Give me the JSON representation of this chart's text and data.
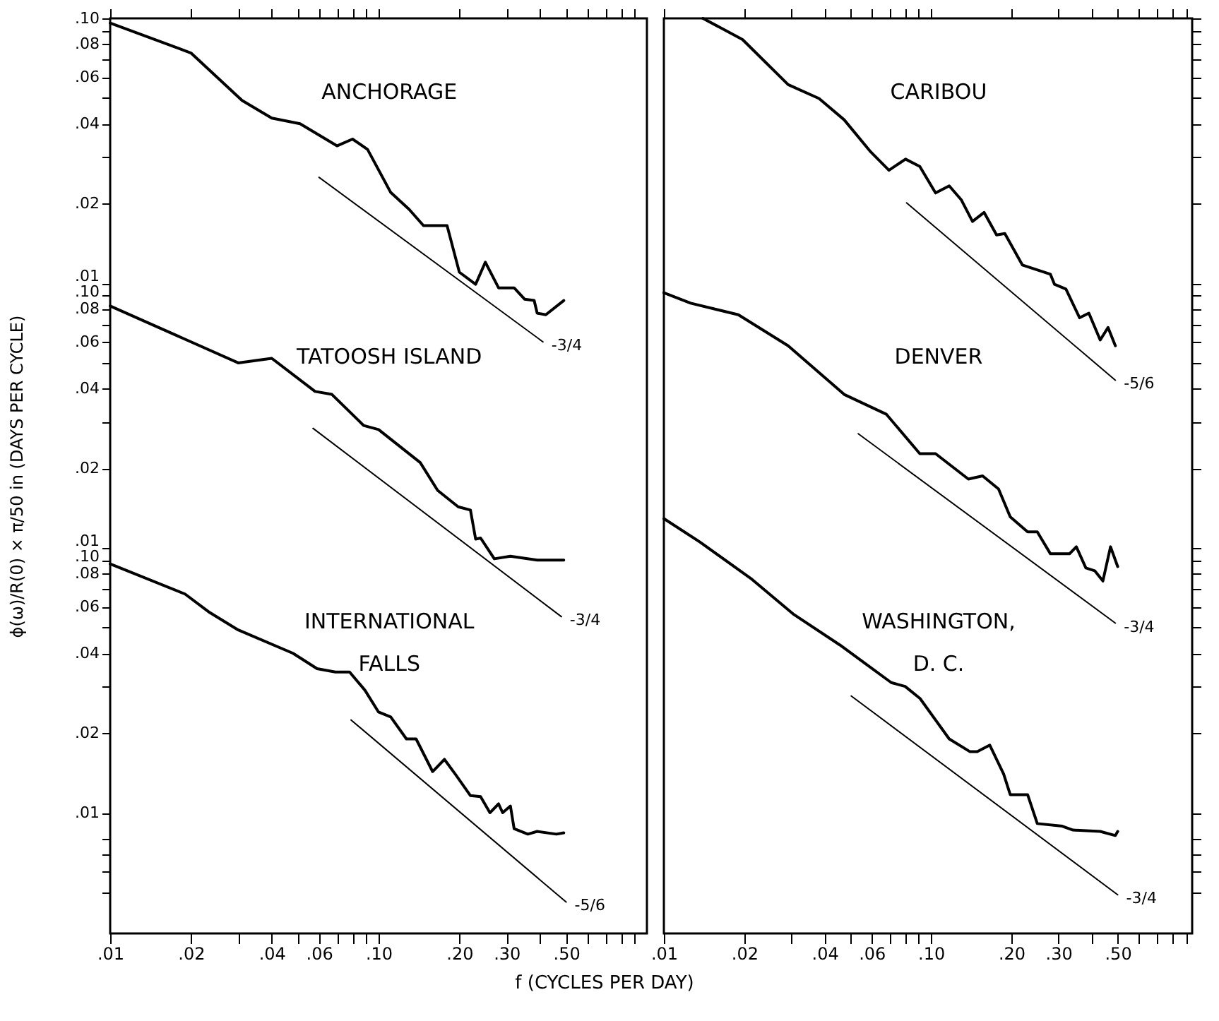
{
  "chart_data": [
    {
      "type": "line",
      "title": "ANCHORAGE",
      "log": "xy",
      "tick_labels": "y",
      "xlim": [
        0.01,
        1
      ],
      "ylim": [
        3.5e-05,
        0.1
      ],
      "xticks": [
        {
          "value": 0.01,
          "label": null
        },
        {
          "value": 0.02,
          "label": null
        },
        {
          "value": 0.03,
          "label": null
        },
        {
          "value": 0.04,
          "label": null
        },
        {
          "value": 0.05,
          "label": null
        },
        {
          "value": 0.06,
          "label": null
        },
        {
          "value": 0.07,
          "label": null
        },
        {
          "value": 0.08,
          "label": null
        },
        {
          "value": 0.09,
          "label": null
        },
        {
          "value": 0.1,
          "label": null
        },
        {
          "value": 0.2,
          "label": null
        },
        {
          "value": 0.3,
          "label": null
        },
        {
          "value": 0.4,
          "label": null
        },
        {
          "value": 0.5,
          "label": null
        },
        {
          "value": 0.6,
          "label": null
        },
        {
          "value": 0.7,
          "label": null
        },
        {
          "value": 0.8,
          "label": null
        },
        {
          "value": 0.9,
          "label": null
        }
      ],
      "yticks": [
        {
          "value": 0.1,
          "label": ".10"
        },
        {
          "value": 0.09,
          "label": null
        },
        {
          "value": 0.08,
          "label": ".08"
        },
        {
          "value": 0.07,
          "label": null
        },
        {
          "value": 0.06,
          "label": ".06"
        },
        {
          "value": 0.05,
          "label": null
        },
        {
          "value": 0.04,
          "label": ".04"
        },
        {
          "value": 0.03,
          "label": null
        },
        {
          "value": 0.02,
          "label": ".02"
        },
        {
          "value": 0.01,
          "label": ".01"
        }
      ],
      "series": [
        {
          "color": "#000000",
          "x": [
            0.01,
            0.02,
            0.031,
            0.04,
            0.051,
            0.07,
            0.08,
            0.091,
            0.111,
            0.13,
            0.147,
            0.18,
            0.2,
            0.23,
            0.25,
            0.28,
            0.32,
            0.35,
            0.38,
            0.39,
            0.42,
            0.49
          ],
          "values": [
            0.096,
            0.074,
            0.049,
            0.042,
            0.04,
            0.033,
            0.035,
            0.032,
            0.022,
            0.019,
            0.0165,
            0.0165,
            0.011,
            0.0099,
            0.012,
            0.0096,
            0.0096,
            0.0087,
            0.0086,
            0.0077,
            0.0076,
            0.0086
          ]
        },
        {
          "name": "-3/4",
          "color": "#000000",
          "x": [
            0.06,
            0.41
          ],
          "values": [
            0.0251,
            0.006
          ]
        }
      ]
    },
    {
      "type": "line",
      "title": "CARIBOU",
      "log": "xy",
      "tick_labels": false,
      "xlim": [
        0.01,
        0.95
      ],
      "ylim": [
        3.5e-05,
        0.1
      ],
      "xticks": [
        {
          "value": 0.01,
          "label": null
        },
        {
          "value": 0.02,
          "label": null
        },
        {
          "value": 0.03,
          "label": null
        },
        {
          "value": 0.04,
          "label": null
        },
        {
          "value": 0.05,
          "label": null
        },
        {
          "value": 0.06,
          "label": null
        },
        {
          "value": 0.07,
          "label": null
        },
        {
          "value": 0.08,
          "label": null
        },
        {
          "value": 0.09,
          "label": null
        },
        {
          "value": 0.1,
          "label": null
        },
        {
          "value": 0.2,
          "label": null
        },
        {
          "value": 0.3,
          "label": null
        },
        {
          "value": 0.4,
          "label": null
        },
        {
          "value": 0.5,
          "label": null
        },
        {
          "value": 0.6,
          "label": null
        },
        {
          "value": 0.7,
          "label": null
        },
        {
          "value": 0.8,
          "label": null
        },
        {
          "value": 0.9,
          "label": null
        }
      ],
      "yticks": [
        {
          "value": 0.1,
          "label": null
        },
        {
          "value": 0.09,
          "label": null
        },
        {
          "value": 0.08,
          "label": null
        },
        {
          "value": 0.07,
          "label": null
        },
        {
          "value": 0.06,
          "label": null
        },
        {
          "value": 0.05,
          "label": null
        },
        {
          "value": 0.04,
          "label": null
        },
        {
          "value": 0.03,
          "label": null
        },
        {
          "value": 0.02,
          "label": null
        },
        {
          "value": 0.01,
          "label": null
        }
      ],
      "series": [
        {
          "color": "#000000",
          "x": [
            0.014,
            0.0197,
            0.0292,
            0.0381,
            0.0473,
            0.0595,
            0.0696,
            0.0803,
            0.0908,
            0.104,
            0.117,
            0.13,
            0.143,
            0.158,
            0.176,
            0.189,
            0.22,
            0.28,
            0.29,
            0.32,
            0.36,
            0.39,
            0.43,
            0.46,
            0.49
          ],
          "values": [
            0.1,
            0.0832,
            0.0562,
            0.0498,
            0.0414,
            0.0313,
            0.0267,
            0.0294,
            0.0276,
            0.0219,
            0.0233,
            0.0206,
            0.0171,
            0.0185,
            0.0152,
            0.0154,
            0.0117,
            0.0108,
            0.0099,
            0.0095,
            0.0074,
            0.0077,
            0.0061,
            0.0068,
            0.0058
          ]
        },
        {
          "name": "-5/6",
          "color": "#000000",
          "x": [
            0.081,
            0.49
          ],
          "values": [
            0.0201,
            0.0043
          ]
        }
      ]
    },
    {
      "type": "line",
      "title": "TATOOSH ISLAND",
      "ylabel": "ϕ(ω)/R(0) × π/50 in  (DAYS PER CYCLE)",
      "log": "xy",
      "tick_labels": "y",
      "xlim": [
        0.01,
        1
      ],
      "ylim": [
        0.00035,
        1
      ],
      "xticks": [
        {
          "value": 0.01,
          "label": null
        },
        {
          "value": 0.02,
          "label": null
        },
        {
          "value": 0.03,
          "label": null
        },
        {
          "value": 0.04,
          "label": null
        },
        {
          "value": 0.05,
          "label": null
        },
        {
          "value": 0.06,
          "label": null
        },
        {
          "value": 0.07,
          "label": null
        },
        {
          "value": 0.08,
          "label": null
        },
        {
          "value": 0.09,
          "label": null
        },
        {
          "value": 0.1,
          "label": null
        },
        {
          "value": 0.2,
          "label": null
        },
        {
          "value": 0.3,
          "label": null
        },
        {
          "value": 0.4,
          "label": null
        },
        {
          "value": 0.5,
          "label": null
        },
        {
          "value": 0.6,
          "label": null
        },
        {
          "value": 0.7,
          "label": null
        },
        {
          "value": 0.8,
          "label": null
        },
        {
          "value": 0.9,
          "label": null
        }
      ],
      "yticks": [
        {
          "value": 0.1,
          "label": ".10"
        },
        {
          "value": 0.09,
          "label": null
        },
        {
          "value": 0.08,
          "label": ".08"
        },
        {
          "value": 0.07,
          "label": null
        },
        {
          "value": 0.06,
          "label": ".06"
        },
        {
          "value": 0.05,
          "label": null
        },
        {
          "value": 0.04,
          "label": ".04"
        },
        {
          "value": 0.03,
          "label": null
        },
        {
          "value": 0.02,
          "label": ".02"
        },
        {
          "value": 0.01,
          "label": ".01"
        }
      ],
      "series": [
        {
          "color": "#000000",
          "x": [
            0.01,
            0.03,
            0.04,
            0.058,
            0.067,
            0.088,
            0.1,
            0.143,
            0.166,
            0.198,
            0.22,
            0.23,
            0.24,
            0.27,
            0.31,
            0.39,
            0.49
          ],
          "values": [
            0.082,
            0.05,
            0.052,
            0.039,
            0.038,
            0.029,
            0.028,
            0.021,
            0.0165,
            0.0143,
            0.0139,
            0.0108,
            0.0109,
            0.0091,
            0.0093,
            0.009,
            0.009
          ]
        },
        {
          "name": "-3/4",
          "color": "#000000",
          "x": [
            0.057,
            0.48
          ],
          "values": [
            0.0283,
            0.0055
          ]
        }
      ]
    },
    {
      "type": "line",
      "title": "DENVER",
      "log": "xy",
      "tick_labels": false,
      "xlim": [
        0.01,
        0.95
      ],
      "ylim": [
        0.00035,
        1
      ],
      "xticks": [
        {
          "value": 0.01,
          "label": null
        },
        {
          "value": 0.02,
          "label": null
        },
        {
          "value": 0.03,
          "label": null
        },
        {
          "value": 0.04,
          "label": null
        },
        {
          "value": 0.05,
          "label": null
        },
        {
          "value": 0.06,
          "label": null
        },
        {
          "value": 0.07,
          "label": null
        },
        {
          "value": 0.08,
          "label": null
        },
        {
          "value": 0.09,
          "label": null
        },
        {
          "value": 0.1,
          "label": null
        },
        {
          "value": 0.2,
          "label": null
        },
        {
          "value": 0.3,
          "label": null
        },
        {
          "value": 0.4,
          "label": null
        },
        {
          "value": 0.5,
          "label": null
        },
        {
          "value": 0.6,
          "label": null
        },
        {
          "value": 0.7,
          "label": null
        },
        {
          "value": 0.8,
          "label": null
        },
        {
          "value": 0.9,
          "label": null
        }
      ],
      "yticks": [
        {
          "value": 0.1,
          "label": null
        },
        {
          "value": 0.09,
          "label": null
        },
        {
          "value": 0.08,
          "label": null
        },
        {
          "value": 0.07,
          "label": null
        },
        {
          "value": 0.06,
          "label": null
        },
        {
          "value": 0.05,
          "label": null
        },
        {
          "value": 0.04,
          "label": null
        },
        {
          "value": 0.03,
          "label": null
        },
        {
          "value": 0.02,
          "label": null
        },
        {
          "value": 0.01,
          "label": null
        }
      ],
      "series": [
        {
          "color": "#000000",
          "x": [
            0.01,
            0.0126,
            0.019,
            0.0292,
            0.0473,
            0.068,
            0.0908,
            0.104,
            0.138,
            0.156,
            0.179,
            0.198,
            0.23,
            0.25,
            0.28,
            0.33,
            0.35,
            0.38,
            0.41,
            0.44,
            0.47,
            0.5
          ],
          "values": [
            0.092,
            0.084,
            0.076,
            0.058,
            0.038,
            0.032,
            0.0227,
            0.0227,
            0.0182,
            0.0187,
            0.0167,
            0.0131,
            0.0115,
            0.0115,
            0.0095,
            0.0095,
            0.0101,
            0.0084,
            0.0082,
            0.0075,
            0.0101,
            0.0085
          ]
        },
        {
          "name": "-3/4",
          "color": "#000000",
          "x": [
            0.0534,
            0.49
          ],
          "values": [
            0.027,
            0.0052
          ]
        }
      ]
    },
    {
      "type": "line",
      "title": "INTERNATIONAL\nFALLS",
      "xlabel": "f (CYCLES PER DAY)",
      "log": "xy",
      "xlim": [
        0.01,
        1
      ],
      "ylim": [
        0.0035,
        10
      ],
      "xticks": [
        {
          "value": 0.01,
          "label": ".01"
        },
        {
          "value": 0.02,
          "label": ".02"
        },
        {
          "value": 0.03,
          "label": null
        },
        {
          "value": 0.04,
          "label": ".04"
        },
        {
          "value": 0.05,
          "label": null
        },
        {
          "value": 0.06,
          "label": ".06"
        },
        {
          "value": 0.07,
          "label": null
        },
        {
          "value": 0.08,
          "label": null
        },
        {
          "value": 0.09,
          "label": null
        },
        {
          "value": 0.1,
          "label": ".10"
        },
        {
          "value": 0.2,
          "label": ".20"
        },
        {
          "value": 0.3,
          "label": ".30"
        },
        {
          "value": 0.4,
          "label": null
        },
        {
          "value": 0.5,
          "label": ".50"
        },
        {
          "value": 0.6,
          "label": null
        },
        {
          "value": 0.7,
          "label": null
        },
        {
          "value": 0.8,
          "label": null
        },
        {
          "value": 0.9,
          "label": null
        }
      ],
      "yticks": [
        {
          "value": 0.1,
          "label": ".10"
        },
        {
          "value": 0.09,
          "label": null
        },
        {
          "value": 0.08,
          "label": ".08"
        },
        {
          "value": 0.07,
          "label": null
        },
        {
          "value": 0.06,
          "label": ".06"
        },
        {
          "value": 0.05,
          "label": null
        },
        {
          "value": 0.04,
          "label": ".04"
        },
        {
          "value": 0.03,
          "label": null
        },
        {
          "value": 0.02,
          "label": ".02"
        },
        {
          "value": 0.01,
          "label": ".01"
        },
        {
          "value": 0.008,
          "label": null
        },
        {
          "value": 0.007,
          "label": null
        },
        {
          "value": 0.006,
          "label": null
        },
        {
          "value": 0.005,
          "label": null
        }
      ],
      "series": [
        {
          "color": "#000000",
          "x": [
            0.01,
            0.019,
            0.0235,
            0.03,
            0.048,
            0.059,
            0.069,
            0.078,
            0.089,
            0.1,
            0.111,
            0.127,
            0.138,
            0.159,
            0.176,
            0.194,
            0.22,
            0.24,
            0.26,
            0.28,
            0.29,
            0.31,
            0.32,
            0.36,
            0.39,
            0.46,
            0.49
          ],
          "values": [
            0.087,
            0.067,
            0.057,
            0.049,
            0.04,
            0.035,
            0.034,
            0.034,
            0.029,
            0.024,
            0.023,
            0.019,
            0.019,
            0.0143,
            0.0159,
            0.0139,
            0.0116,
            0.0115,
            0.01,
            0.0108,
            0.01,
            0.0106,
            0.0087,
            0.0083,
            0.0085,
            0.0083,
            0.0084
          ]
        },
        {
          "name": "-5/6",
          "color": "#000000",
          "x": [
            0.079,
            0.5
          ],
          "values": [
            0.0224,
            0.0046
          ]
        }
      ]
    },
    {
      "type": "line",
      "title": "WASHINGTON,\nD. C.",
      "log": "xy",
      "tick_labels": "x",
      "xlim": [
        0.01,
        0.95
      ],
      "ylim": [
        0.0035,
        10
      ],
      "xticks": [
        {
          "value": 0.01,
          "label": ".01"
        },
        {
          "value": 0.02,
          "label": ".02"
        },
        {
          "value": 0.03,
          "label": null
        },
        {
          "value": 0.04,
          "label": ".04"
        },
        {
          "value": 0.05,
          "label": null
        },
        {
          "value": 0.06,
          "label": ".06"
        },
        {
          "value": 0.07,
          "label": null
        },
        {
          "value": 0.08,
          "label": null
        },
        {
          "value": 0.09,
          "label": null
        },
        {
          "value": 0.1,
          "label": ".10"
        },
        {
          "value": 0.2,
          "label": ".20"
        },
        {
          "value": 0.3,
          "label": ".30"
        },
        {
          "value": 0.4,
          "label": null
        },
        {
          "value": 0.5,
          "label": ".50"
        },
        {
          "value": 0.6,
          "label": null
        },
        {
          "value": 0.7,
          "label": null
        },
        {
          "value": 0.8,
          "label": null
        },
        {
          "value": 0.9,
          "label": null
        }
      ],
      "yticks": [
        {
          "value": 0.1,
          "label": null
        },
        {
          "value": 0.09,
          "label": null
        },
        {
          "value": 0.08,
          "label": null
        },
        {
          "value": 0.07,
          "label": null
        },
        {
          "value": 0.06,
          "label": null
        },
        {
          "value": 0.05,
          "label": null
        },
        {
          "value": 0.04,
          "label": null
        },
        {
          "value": 0.03,
          "label": null
        },
        {
          "value": 0.02,
          "label": null
        },
        {
          "value": 0.01,
          "label": null
        },
        {
          "value": 0.008,
          "label": null
        },
        {
          "value": 0.007,
          "label": null
        },
        {
          "value": 0.006,
          "label": null
        },
        {
          "value": 0.005,
          "label": null
        }
      ],
      "series": [
        {
          "color": "#000000",
          "x": [
            0.01,
            0.0137,
            0.0214,
            0.0307,
            0.0456,
            0.058,
            0.071,
            0.08,
            0.091,
            0.117,
            0.14,
            0.149,
            0.166,
            0.187,
            0.198,
            0.23,
            0.25,
            0.31,
            0.34,
            0.43,
            0.49,
            0.5
          ],
          "values": [
            0.129,
            0.105,
            0.076,
            0.056,
            0.043,
            0.036,
            0.031,
            0.03,
            0.027,
            0.019,
            0.017,
            0.017,
            0.018,
            0.014,
            0.0117,
            0.0117,
            0.0091,
            0.0089,
            0.0086,
            0.0085,
            0.0082,
            0.0085
          ]
        },
        {
          "name": "-3/4",
          "color": "#000000",
          "x": [
            0.0503,
            0.5
          ],
          "values": [
            0.0276,
            0.0049
          ]
        }
      ]
    }
  ]
}
